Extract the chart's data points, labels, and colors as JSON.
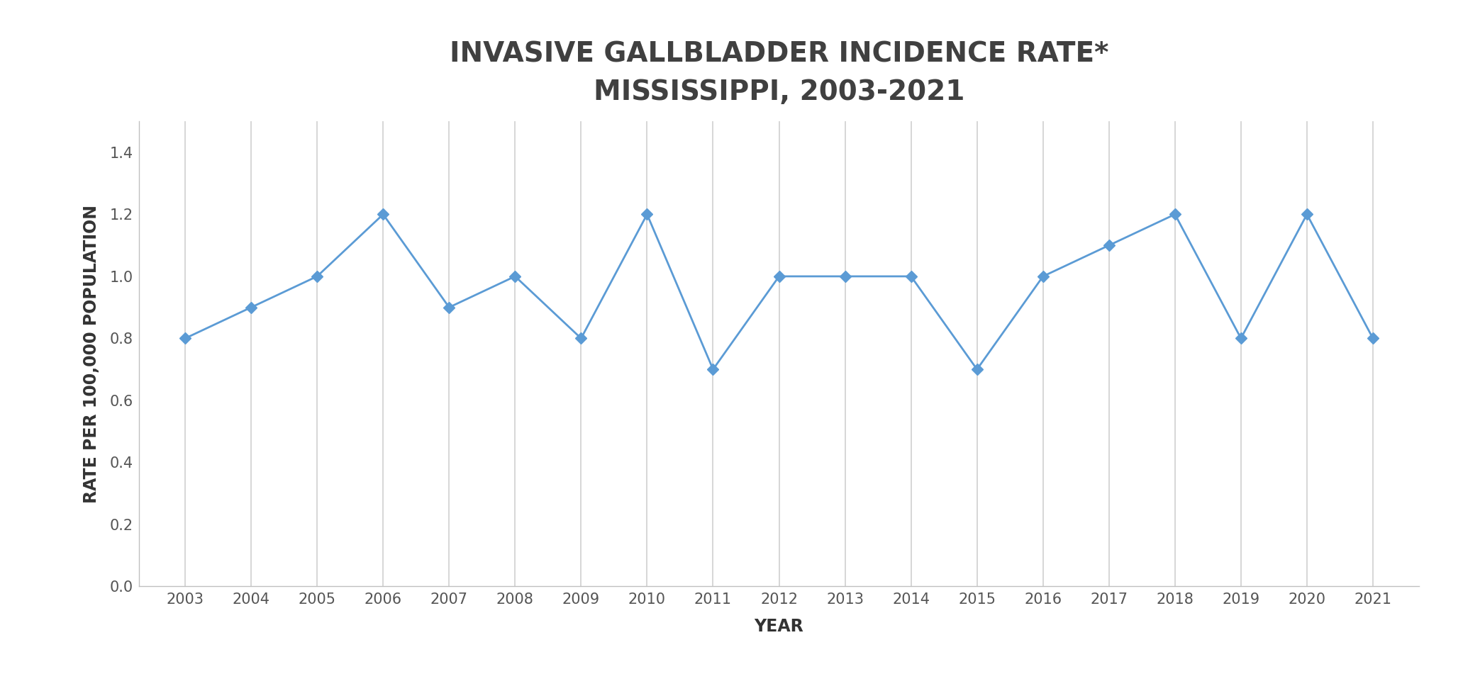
{
  "title_line1": "INVASIVE GALLBLADDER INCIDENCE RATE*",
  "title_line2": "MISSISSIPPI, 2003-2021",
  "xlabel": "YEAR",
  "ylabel": "RATE PER 100,000 POPULATION",
  "years": [
    2003,
    2004,
    2005,
    2006,
    2007,
    2008,
    2009,
    2010,
    2011,
    2012,
    2013,
    2014,
    2015,
    2016,
    2017,
    2018,
    2019,
    2020,
    2021
  ],
  "values": [
    0.8,
    0.9,
    1.0,
    1.2,
    0.9,
    1.0,
    0.8,
    1.2,
    0.7,
    1.0,
    1.0,
    1.0,
    0.7,
    1.0,
    1.1,
    1.2,
    0.8,
    1.2,
    0.8
  ],
  "line_color": "#5B9BD5",
  "marker_color": "#5B9BD5",
  "background_color": "#ffffff",
  "plot_background_color": "#ffffff",
  "grid_color": "#d0d0d0",
  "spine_color": "#c0c0c0",
  "ylim": [
    0.0,
    1.5
  ],
  "yticks": [
    0.0,
    0.2,
    0.4,
    0.6,
    0.8,
    1.0,
    1.2,
    1.4
  ],
  "title_fontsize": 28,
  "axis_label_fontsize": 17,
  "tick_fontsize": 15,
  "line_width": 2.0,
  "marker_size": 8,
  "marker_style": "D"
}
